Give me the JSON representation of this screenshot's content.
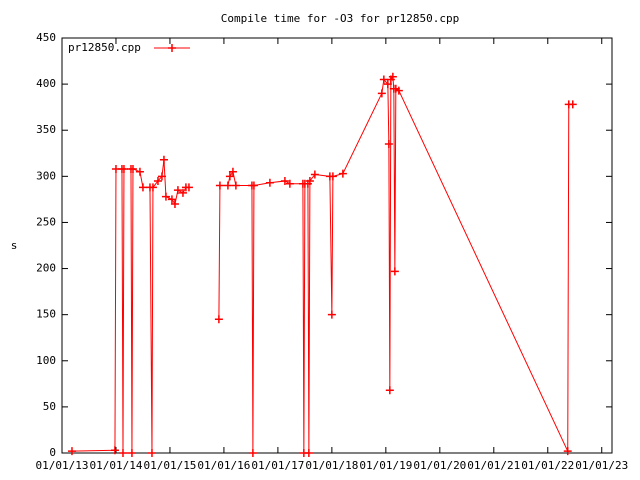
{
  "chart_data": {
    "type": "line",
    "title": "Compile time for -O3 for pr12850.cpp",
    "y_label": "s",
    "x": [
      2013.185,
      2013.981,
      2014.0,
      2014.111,
      2014.13,
      2014.148,
      2014.278,
      2014.296,
      2014.315,
      2014.444,
      2014.5,
      2014.63,
      2014.667,
      2014.685,
      2014.778,
      2014.852,
      2014.889,
      2014.926,
      2015.037,
      2015.093,
      2015.148,
      2015.241,
      2015.296,
      2015.352,
      2015.6,
      2015.907,
      2015.926,
      2016.074,
      2016.111,
      2016.167,
      2016.222,
      2016.519,
      2016.537,
      2016.556,
      2016.852,
      2017.13,
      2017.222,
      2017.463,
      2017.481,
      2017.5,
      2017.556,
      2017.574,
      2017.593,
      2017.685,
      2017.963,
      2018.0,
      2018.019,
      2018.204,
      2018.926,
      2018.963,
      2019.037,
      2019.056,
      2019.074,
      2019.093,
      2019.13,
      2019.148,
      2019.167,
      2019.185,
      2019.241,
      2022.37,
      2022.389,
      2022.463
    ],
    "series": [
      {
        "name": "pr12850.cpp",
        "color": "#ff0000",
        "values": [
          2,
          3,
          308,
          308,
          0,
          308,
          308,
          0,
          308,
          305,
          288,
          288,
          0,
          288,
          295,
          300,
          318,
          278,
          275,
          270,
          285,
          282,
          288,
          288,
          null,
          145,
          290,
          290,
          300,
          305,
          290,
          290,
          0,
          290,
          293,
          295,
          292,
          292,
          0,
          292,
          292,
          0,
          295,
          302,
          300,
          150,
          300,
          303,
          390,
          405,
          400,
          335,
          68,
          405,
          408,
          395,
          197,
          395,
          393,
          2,
          378,
          378
        ]
      }
    ],
    "xlim": [
      2013,
      2023.19
    ],
    "xticks": [
      {
        "value": 2013,
        "label": "01/01/13"
      },
      {
        "value": 2014,
        "label": "01/01/14"
      },
      {
        "value": 2015,
        "label": "01/01/15"
      },
      {
        "value": 2016,
        "label": "01/01/16"
      },
      {
        "value": 2017,
        "label": "01/01/17"
      },
      {
        "value": 2018,
        "label": "01/01/18"
      },
      {
        "value": 2019,
        "label": "01/01/19"
      },
      {
        "value": 2020,
        "label": "01/01/20"
      },
      {
        "value": 2021,
        "label": "01/01/21"
      },
      {
        "value": 2022,
        "label": "01/01/22"
      },
      {
        "value": 2023,
        "label": "01/01/23"
      }
    ],
    "ylim": [
      0,
      450
    ],
    "yticks": [
      0,
      50,
      100,
      150,
      200,
      250,
      300,
      350,
      400,
      450
    ],
    "grid": false,
    "legend": "top-left"
  }
}
